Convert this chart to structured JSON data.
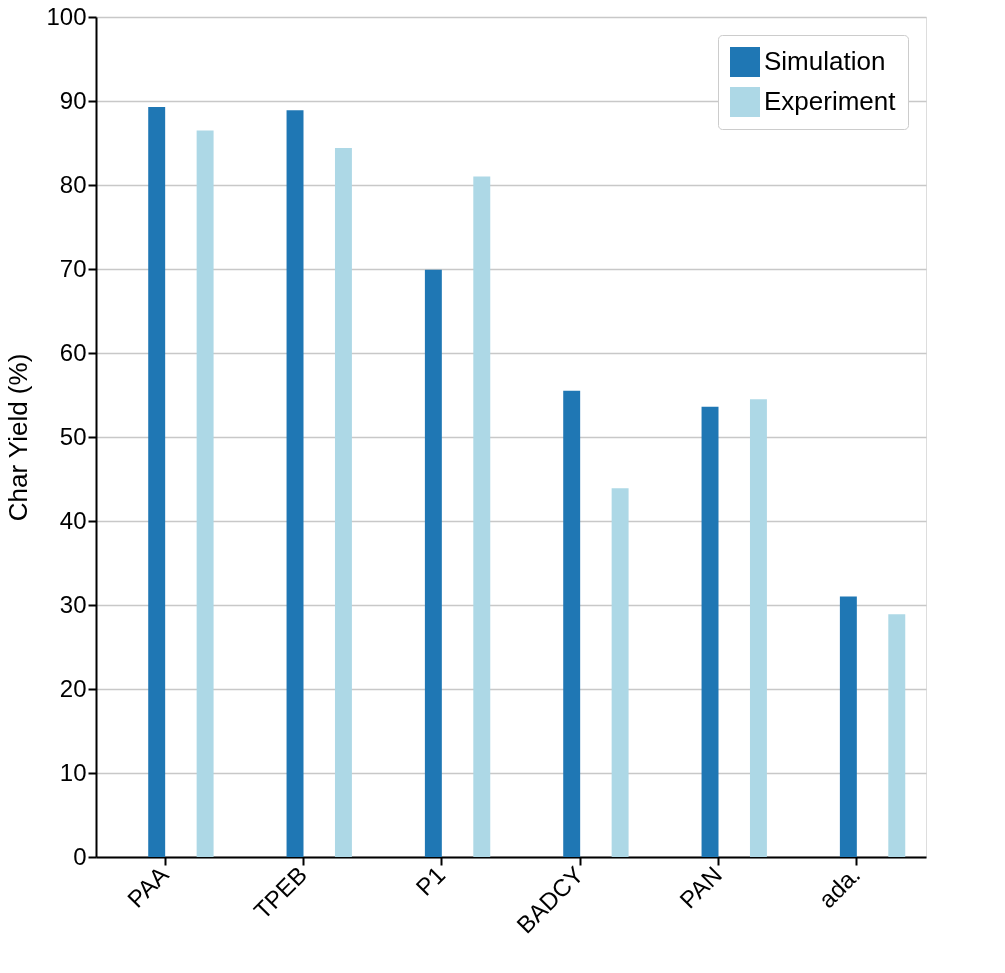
{
  "chart_data": {
    "type": "bar",
    "ylabel": "Char Yield (%)",
    "categories": [
      "PAA",
      "TPEB",
      "P1",
      "BADCY",
      "PAN",
      "ada."
    ],
    "series": [
      {
        "name": "Simulation",
        "color": "#1f77b4",
        "values": [
          89.3,
          88.9,
          69.9,
          55.5,
          53.6,
          31.0
        ]
      },
      {
        "name": "Experiment",
        "color": "#add8e6",
        "values": [
          86.5,
          84.4,
          81.0,
          43.9,
          54.5,
          28.9
        ]
      }
    ],
    "ylim": [
      0,
      100
    ],
    "yticks": [
      0,
      10,
      20,
      30,
      40,
      50,
      60,
      70,
      80,
      90,
      100
    ],
    "grid": "y",
    "legend": "top right"
  }
}
